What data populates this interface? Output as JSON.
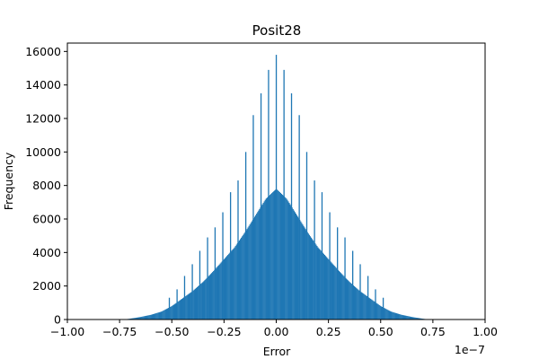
{
  "chart_data": {
    "type": "bar",
    "title": "Posit28",
    "xlabel": "Error",
    "ylabel": "Frequency",
    "x_offset_label": "1e−7",
    "xlim": [
      -1.0,
      1.0
    ],
    "ylim": [
      0,
      16500
    ],
    "x_ticks": [
      -1.0,
      -0.75,
      -0.5,
      -0.25,
      0.0,
      0.25,
      0.5,
      0.75,
      1.0
    ],
    "x_tick_labels": [
      "−1.00",
      "−0.75",
      "−0.50",
      "−0.25",
      "0.00",
      "0.25",
      "0.50",
      "0.75",
      "1.00"
    ],
    "y_ticks": [
      0,
      2000,
      4000,
      6000,
      8000,
      10000,
      12000,
      14000,
      16000
    ],
    "y_tick_labels": [
      "0",
      "2000",
      "4000",
      "6000",
      "8000",
      "10000",
      "12000",
      "14000",
      "16000"
    ],
    "grid": false,
    "bar_color": "#1f77b4",
    "series": [
      {
        "x": [
          -0.7,
          -0.65,
          -0.6,
          -0.55,
          -0.5,
          -0.45,
          -0.4,
          -0.35,
          -0.3,
          -0.25,
          -0.2,
          -0.15,
          -0.1,
          -0.05,
          0.0,
          0.05,
          0.1,
          0.15,
          0.2,
          0.25,
          0.3,
          0.35,
          0.4,
          0.45,
          0.5,
          0.55,
          0.6,
          0.65,
          0.7
        ],
        "values": [
          50,
          150,
          280,
          470,
          800,
          1250,
          1700,
          2250,
          2900,
          3600,
          4300,
          5200,
          6200,
          7200,
          7800,
          7200,
          6200,
          5200,
          4300,
          3600,
          2900,
          2250,
          1700,
          1250,
          800,
          470,
          280,
          150,
          50
        ]
      },
      {
        "x": [
          -0.512,
          -0.475,
          -0.439,
          -0.402,
          -0.366,
          -0.329,
          -0.293,
          -0.256,
          -0.219,
          -0.183,
          -0.146,
          -0.11,
          -0.073,
          -0.037,
          0.0,
          0.037,
          0.073,
          0.11,
          0.146,
          0.183,
          0.219,
          0.256,
          0.293,
          0.329,
          0.366,
          0.402,
          0.439,
          0.475,
          0.512
        ],
        "values": [
          1300,
          1800,
          2600,
          3300,
          4100,
          4900,
          5500,
          6400,
          7600,
          8300,
          10000,
          12200,
          13500,
          14900,
          15800,
          14900,
          13500,
          12200,
          10000,
          8300,
          7600,
          6400,
          5500,
          4900,
          4100,
          3300,
          2600,
          1800,
          1300
        ]
      }
    ]
  }
}
